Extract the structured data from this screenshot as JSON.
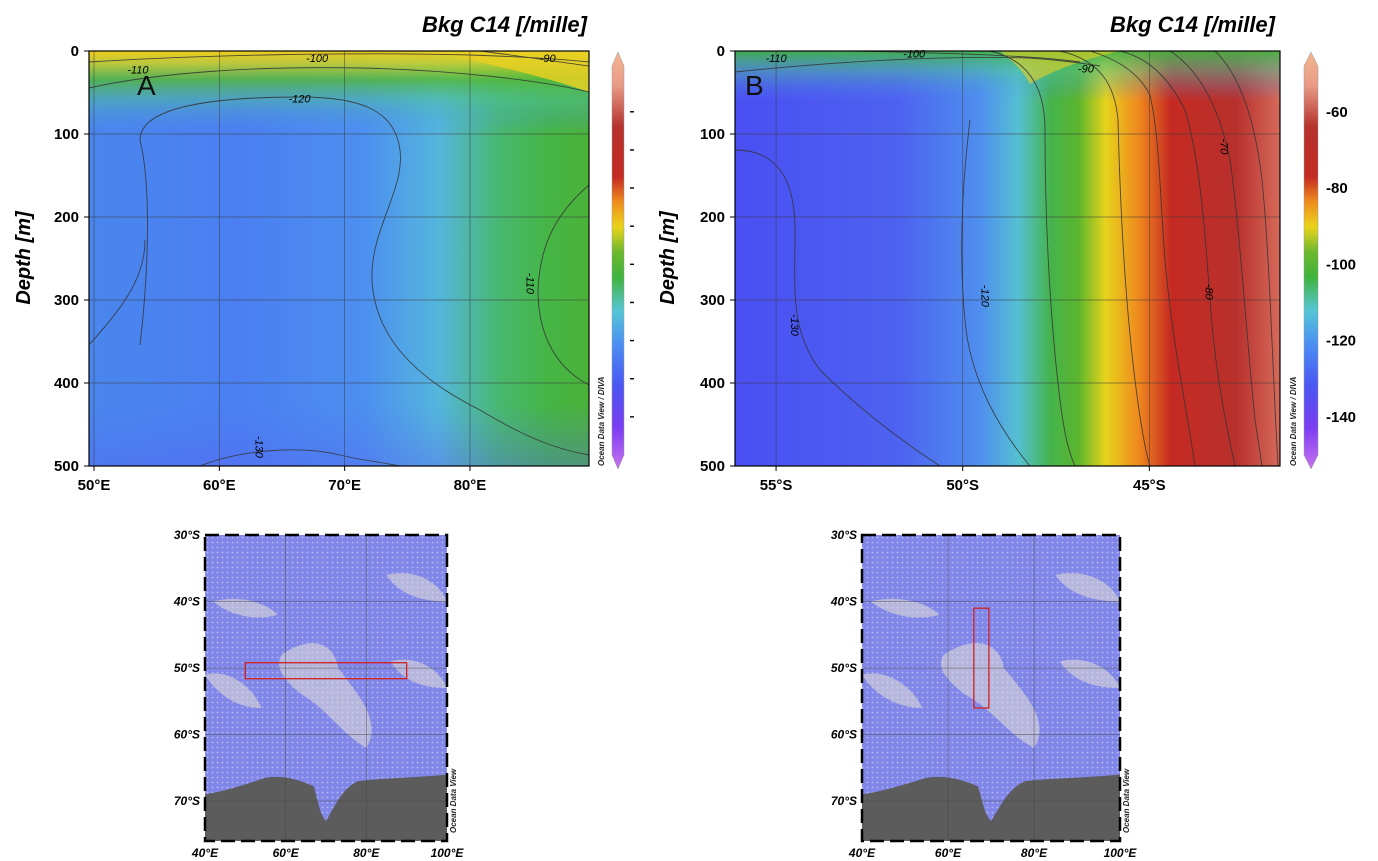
{
  "chart_data": [
    {
      "type": "heatmap",
      "panel_label": "A",
      "title": "Bkg C14 [/mille]",
      "ylabel": "Depth [m]",
      "xlabel": "",
      "x_ticks": [
        "50°E",
        "60°E",
        "70°E",
        "80°E"
      ],
      "x_tick_values": [
        50,
        60,
        70,
        80
      ],
      "xlim": [
        49.6,
        89.5
      ],
      "y_ticks": [
        "0",
        "100",
        "200",
        "300",
        "400",
        "500"
      ],
      "y_tick_values": [
        0,
        100,
        200,
        300,
        400,
        500
      ],
      "ylim": [
        0,
        500
      ],
      "y_inverted": true,
      "grid": true,
      "colorbar_range": [
        -150,
        -48
      ],
      "colorbar_ticks": [],
      "contour_labels": [
        {
          "text": "-110",
          "x": 53.5,
          "y": 27
        },
        {
          "text": "-100",
          "x": 67.8,
          "y": 13
        },
        {
          "text": "-90",
          "x": 86.2,
          "y": 13
        },
        {
          "text": "-120",
          "x": 66.4,
          "y": 62
        },
        {
          "text": "-110",
          "x": 84.5,
          "y": 280
        },
        {
          "text": "-130",
          "x": 62.9,
          "y": 477
        }
      ],
      "credit": "Ocean Data View / DIVA"
    },
    {
      "type": "heatmap",
      "panel_label": "B",
      "title": "Bkg C14 [/mille]",
      "ylabel": "Depth [m]",
      "xlabel": "",
      "x_ticks": [
        "55°S",
        "50°S",
        "45°S"
      ],
      "x_tick_values": [
        55,
        50,
        45
      ],
      "xlim": [
        56.1,
        41.5
      ],
      "y_ticks": [
        "0",
        "100",
        "200",
        "300",
        "400",
        "500"
      ],
      "y_tick_values": [
        0,
        100,
        200,
        300,
        400,
        500
      ],
      "ylim": [
        0,
        500
      ],
      "y_inverted": true,
      "grid": true,
      "colorbar_range": [
        -150,
        -48
      ],
      "colorbar_ticks": [
        "-60",
        "-80",
        "-100",
        "-120",
        "-140"
      ],
      "colorbar_tick_values": [
        -60,
        -80,
        -100,
        -120,
        -140
      ],
      "contour_labels": [
        {
          "text": "-110",
          "x": 55.0,
          "y": 13
        },
        {
          "text": "-100",
          "x": 51.3,
          "y": 8
        },
        {
          "text": "-90",
          "x": 46.7,
          "y": 26
        },
        {
          "text": "-70",
          "x": 43.1,
          "y": 115
        },
        {
          "text": "-80",
          "x": 43.5,
          "y": 290
        },
        {
          "text": "-120",
          "x": 49.5,
          "y": 295
        },
        {
          "text": "-130",
          "x": 54.6,
          "y": 330
        }
      ],
      "credit": "Ocean Data View / DIVA"
    },
    {
      "type": "map",
      "x_ticks": [
        "40°E",
        "60°E",
        "80°E",
        "100°E"
      ],
      "x_tick_values": [
        40,
        60,
        80,
        100
      ],
      "y_ticks": [
        "30°S",
        "40°S",
        "50°S",
        "60°S",
        "70°S"
      ],
      "y_tick_values": [
        30,
        40,
        50,
        60,
        70
      ],
      "section_box": {
        "lon": [
          50,
          90
        ],
        "lat": [
          49.2,
          51.6
        ]
      },
      "credit": "Ocean Data View"
    },
    {
      "type": "map",
      "x_ticks": [
        "40°E",
        "60°E",
        "80°E",
        "100°E"
      ],
      "x_tick_values": [
        40,
        60,
        80,
        100
      ],
      "y_ticks": [
        "30°S",
        "40°S",
        "50°S",
        "60°S",
        "70°S"
      ],
      "y_tick_values": [
        30,
        40,
        50,
        60,
        70
      ],
      "section_box": {
        "lon": [
          66,
          69.5
        ],
        "lat": [
          41,
          56
        ]
      },
      "credit": "Ocean Data View"
    }
  ],
  "colors": {
    "colormap": [
      "#c873f0",
      "#7b3cf2",
      "#4a57f3",
      "#4a8ff2",
      "#56c6d6",
      "#40b43c",
      "#6cb82e",
      "#e9d41b",
      "#f08d1d",
      "#c42b22",
      "#b5322c",
      "#e99b86",
      "#f1b58f"
    ],
    "land": "#5c5c5c",
    "ocean_map": "#8087e8",
    "section": "#d02020"
  }
}
